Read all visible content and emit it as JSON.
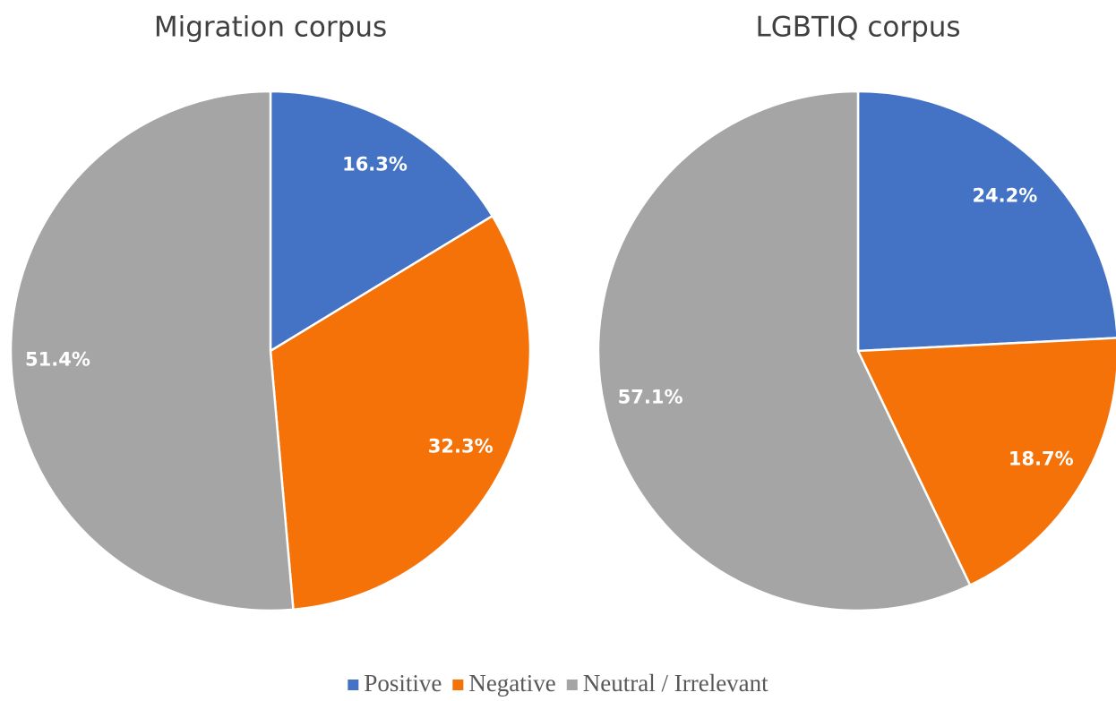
{
  "chart_data": [
    {
      "type": "pie",
      "title": "Migration corpus",
      "categories": [
        "Positive",
        "Negative",
        "Neutral / Irrelevant"
      ],
      "values": [
        16.3,
        32.3,
        51.4
      ],
      "value_labels": [
        "16.3%",
        "32.3%",
        "51.4%"
      ],
      "colors": [
        "#4472c4",
        "#f57208",
        "#a5a5a5"
      ]
    },
    {
      "type": "pie",
      "title": "LGBTIQ corpus",
      "categories": [
        "Positive",
        "Negative",
        "Neutral / Irrelevant"
      ],
      "values": [
        24.2,
        18.7,
        57.1
      ],
      "value_labels": [
        "24.2%",
        "18.7%",
        "57.1%"
      ],
      "colors": [
        "#4472c4",
        "#f57208",
        "#a5a5a5"
      ]
    }
  ]
}
